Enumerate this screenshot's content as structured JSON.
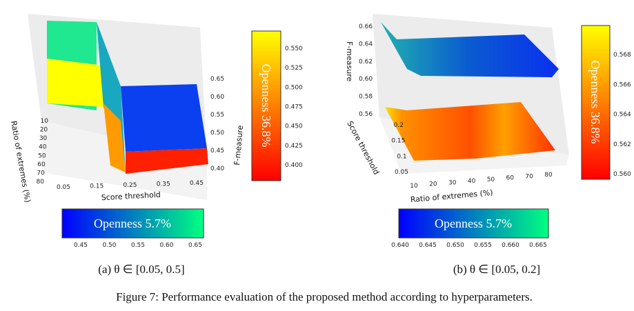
{
  "figure_caption": "Figure 7: Performance evaluation of the proposed method according to hyperparameters.",
  "panels": [
    {
      "caption": "(a) θ ∈ [0.05, 0.5]",
      "x_label": "Score threshold",
      "x_ticks": [
        "0.05",
        "0.15",
        "0.25",
        "0.35",
        "0.45"
      ],
      "y_label": "Ratio of extremes (%)",
      "y_ticks": [
        "10",
        "20",
        "30",
        "40",
        "50",
        "60",
        "70",
        "80"
      ],
      "z_label": "F-measure",
      "z_ticks": [
        "0.40",
        "0.45",
        "0.50",
        "0.55",
        "0.60",
        "0.65"
      ],
      "colorbar_vertical": {
        "label": "Openness 36.8%",
        "ticks": [
          "0.400",
          "0.425",
          "0.450",
          "0.475",
          "0.500",
          "0.525",
          "0.550"
        ],
        "colormap": "autumn (red→yellow)"
      },
      "colorbar_horizontal": {
        "label": "Openness 5.7%",
        "ticks": [
          "0.45",
          "0.50",
          "0.55",
          "0.60",
          "0.65"
        ],
        "colormap": "winter (blue→green)"
      }
    },
    {
      "caption": "(b) θ ∈ [0.05, 0.2]",
      "x_label": "Ratio of extremes (%)",
      "x_ticks": [
        "10",
        "20",
        "30",
        "40",
        "50",
        "60",
        "70",
        "80"
      ],
      "y_label": "Score threshold",
      "y_ticks": [
        "0.05",
        "0.1",
        "0.15",
        "0.2"
      ],
      "z_label": "F-measure",
      "z_ticks": [
        "0.56",
        "0.58",
        "0.60",
        "0.62",
        "0.64",
        "0.66"
      ],
      "colorbar_vertical": {
        "label": "Openness 36.8%",
        "ticks": [
          "0.560",
          "0.562",
          "0.564",
          "0.566",
          "0.568"
        ],
        "colormap": "autumn (red→yellow)"
      },
      "colorbar_horizontal": {
        "label": "Openness 5.7%",
        "ticks": [
          "0.640",
          "0.645",
          "0.650",
          "0.655",
          "0.660",
          "0.665"
        ],
        "colormap": "winter (blue→green)"
      }
    }
  ]
}
